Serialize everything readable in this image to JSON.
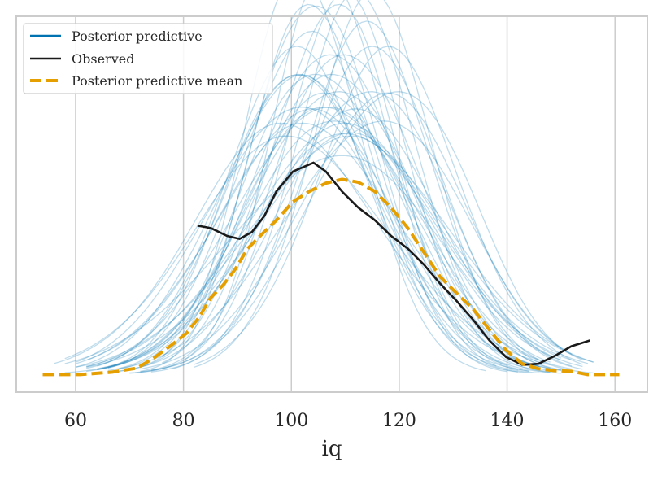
{
  "chart_data": {
    "type": "line",
    "title": "",
    "xlabel": "iq",
    "ylabel": "",
    "xlim": [
      49,
      166
    ],
    "ylim": [
      -0.0018,
      0.0367
    ],
    "xticks": [
      60,
      80,
      100,
      120,
      140,
      160
    ],
    "xtick_labels": [
      "60",
      "80",
      "100",
      "120",
      "140",
      "160"
    ],
    "grid": "vertical",
    "legend": {
      "placement": "top-left",
      "entries": [
        "Posterior predictive",
        "Observed",
        "Posterior predictive mean"
      ]
    },
    "colors": {
      "posterior_predictive": "#0072b2",
      "observed": "#1a1a1a",
      "mean": "#e69f00",
      "grid": "#cccccc",
      "frame": "#cccccc"
    },
    "posterior_predictive_samples_note_params": [
      "mu",
      "sd",
      "xmin",
      "xmax"
    ],
    "posterior_predictive_samples": [
      [
        104,
        14,
        62,
        150
      ],
      [
        108,
        16,
        58,
        152
      ],
      [
        110,
        12,
        70,
        148
      ],
      [
        102,
        17,
        60,
        146
      ],
      [
        112,
        15,
        66,
        154
      ],
      [
        106,
        11,
        72,
        140
      ],
      [
        100,
        18,
        56,
        150
      ],
      [
        114,
        13,
        74,
        156
      ],
      [
        109,
        19,
        60,
        155
      ],
      [
        105,
        13,
        68,
        144
      ],
      [
        111,
        17,
        64,
        150
      ],
      [
        103,
        15,
        62,
        148
      ],
      [
        115,
        14,
        70,
        152
      ],
      [
        107,
        12,
        76,
        142
      ],
      [
        99,
        16,
        60,
        140
      ],
      [
        113,
        18,
        66,
        156
      ],
      [
        108,
        11,
        80,
        138
      ],
      [
        101,
        14,
        64,
        146
      ],
      [
        116,
        16,
        72,
        154
      ],
      [
        106,
        20,
        58,
        152
      ],
      [
        110,
        14,
        68,
        150
      ],
      [
        104,
        18,
        62,
        146
      ],
      [
        112,
        12,
        78,
        146
      ],
      [
        102,
        13,
        66,
        142
      ],
      [
        117,
        15,
        74,
        150
      ],
      [
        109,
        16,
        64,
        148
      ],
      [
        105,
        12,
        72,
        144
      ],
      [
        111,
        19,
        62,
        156
      ],
      [
        100,
        15,
        60,
        144
      ],
      [
        114,
        17,
        68,
        152
      ],
      [
        107,
        14,
        66,
        148
      ],
      [
        103,
        11,
        76,
        136
      ],
      [
        118,
        14,
        82,
        154
      ],
      [
        108,
        18,
        62,
        150
      ],
      [
        106,
        15,
        64,
        146
      ],
      [
        112,
        13,
        72,
        148
      ],
      [
        101,
        19,
        58,
        148
      ],
      [
        115,
        12,
        82,
        146
      ],
      [
        110,
        17,
        64,
        154
      ],
      [
        104,
        16,
        62,
        150
      ]
    ],
    "observed": {
      "x": [
        82.6,
        85.1,
        88.1,
        90.4,
        92.7,
        95.0,
        97.2,
        100.3,
        104.1,
        106.4,
        109.4,
        112.4,
        115.5,
        118.5,
        121.6,
        124.6,
        127.6,
        130.7,
        133.7,
        136.7,
        139.8,
        142.8,
        145.8,
        148.8,
        151.9,
        155.4
      ],
      "y": [
        0.01525,
        0.015,
        0.0142,
        0.0139,
        0.0146,
        0.01625,
        0.01875,
        0.0208,
        0.0217,
        0.0208,
        0.01875,
        0.0171,
        0.0158,
        0.0142,
        0.0129,
        0.01125,
        0.0093,
        0.0075,
        0.0056,
        0.0035,
        0.0018,
        0.001,
        0.0011,
        0.0019,
        0.0029,
        0.0035
      ]
    },
    "mean": {
      "x": [
        53.9,
        60.8,
        66.8,
        71.4,
        74.4,
        77.5,
        80.5,
        82.8,
        85.1,
        87.4,
        89.6,
        91.9,
        94.2,
        97.2,
        100.3,
        103.3,
        106.4,
        109.4,
        112.4,
        115.5,
        118.5,
        121.6,
        124.6,
        127.6,
        130.7,
        133.7,
        136.7,
        139.8,
        142.8,
        145.8,
        148.8,
        151.9,
        154.9,
        160.8
      ],
      "y": [
        0,
        0,
        0.00025,
        0.00067,
        0.00167,
        0.0029,
        0.0042,
        0.0058,
        0.0079,
        0.0092,
        0.0108,
        0.0129,
        0.0142,
        0.0158,
        0.0177,
        0.01875,
        0.0196,
        0.02,
        0.0197,
        0.01875,
        0.0171,
        0.015,
        0.0125,
        0.01,
        0.0083,
        0.0067,
        0.0046,
        0.0025,
        0.0011,
        0.0006,
        0.0004,
        0.00033,
        0,
        0
      ]
    }
  }
}
